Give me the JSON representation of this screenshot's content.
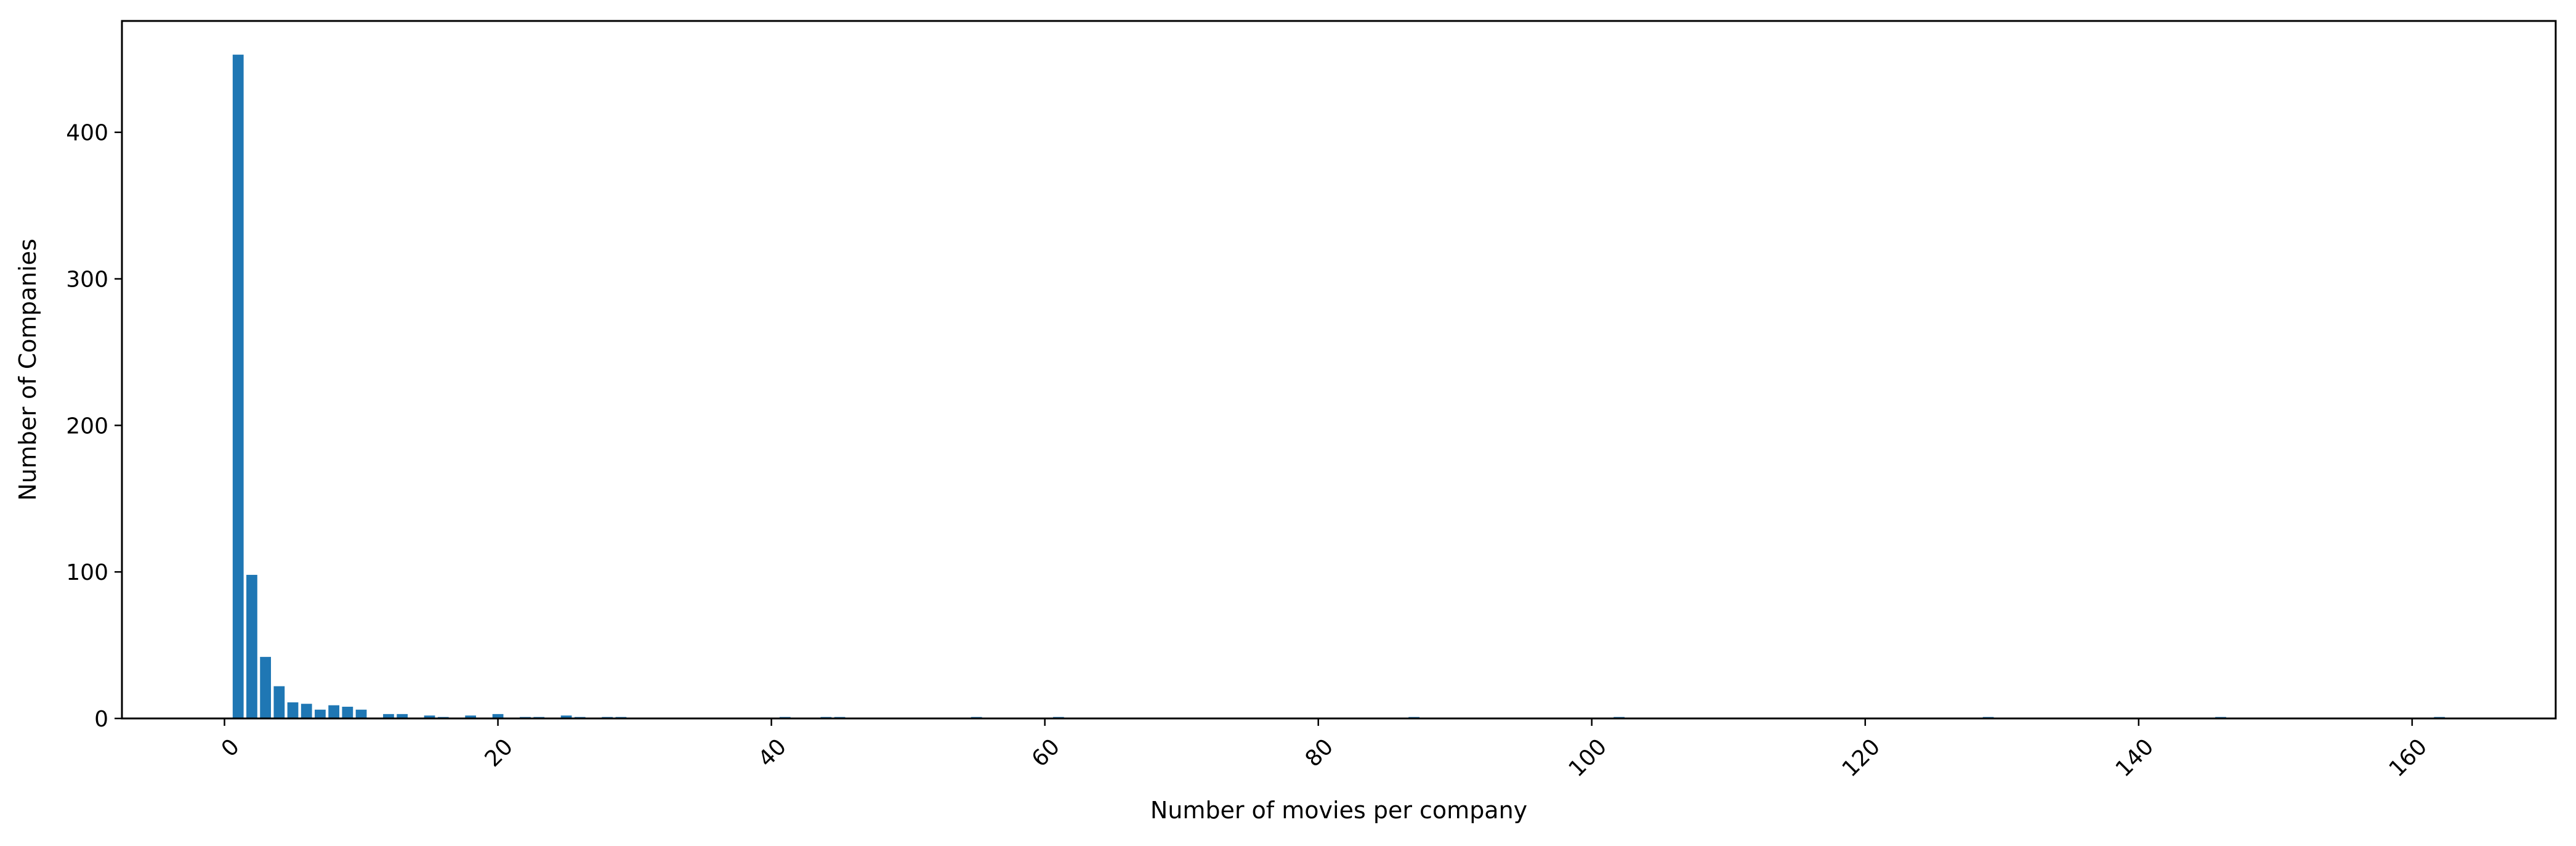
{
  "chart_data": {
    "type": "bar",
    "title": "",
    "xlabel": "Number of movies per company",
    "ylabel": "Number of Companies",
    "xlim": [
      -7.5,
      170.5
    ],
    "ylim": [
      0,
      476
    ],
    "xticks": [
      0,
      20,
      40,
      60,
      80,
      100,
      120,
      140,
      160
    ],
    "xtick_labels": [
      "0",
      "20",
      "40",
      "60",
      "80",
      "100",
      "120",
      "140",
      "160"
    ],
    "xtick_rotation": -45,
    "yticks": [
      0,
      100,
      200,
      300,
      400
    ],
    "ytick_labels": [
      "0",
      "100",
      "200",
      "300",
      "400"
    ],
    "grid": false,
    "legend": "none",
    "bar_color": "#1f77b4",
    "series": [
      {
        "x": [
          1,
          2,
          3,
          4,
          5,
          6,
          7,
          8,
          9,
          10,
          12,
          13,
          15,
          16,
          18,
          20,
          22,
          23,
          25,
          26,
          28,
          29,
          41,
          44,
          45,
          55,
          61,
          87,
          102,
          129,
          146,
          162
        ],
        "values": [
          453,
          98,
          42,
          22,
          11,
          10,
          6,
          9,
          8,
          6,
          3,
          3,
          2,
          1,
          2,
          3,
          1,
          1,
          2,
          1,
          1,
          1,
          1,
          1,
          1,
          1,
          1,
          1,
          1,
          1,
          1,
          1
        ]
      }
    ]
  }
}
